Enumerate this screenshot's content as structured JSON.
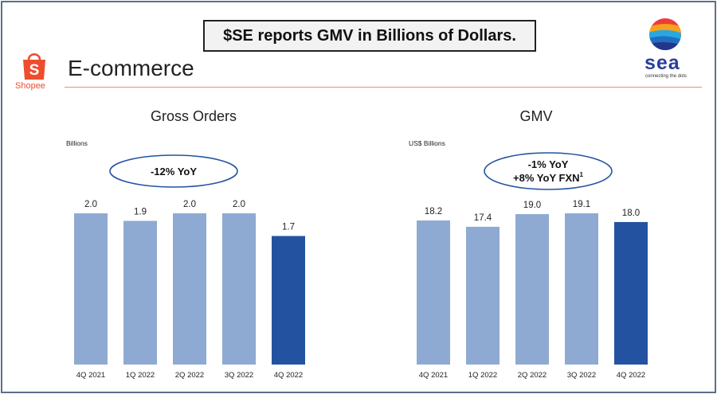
{
  "banner": {
    "text": "$SE reports GMV in Billions of Dollars."
  },
  "header": {
    "section_title": "E-commerce",
    "shopee_label": "Shopee",
    "sea_brand": "sea",
    "sea_tagline": "connecting the dots"
  },
  "colors": {
    "bar": "#8faad2",
    "bar_highlight": "#2353a0",
    "rule": "#f08a80",
    "shopee": "#ee4d2d",
    "sea": "#2a3f9a"
  },
  "chart_data": [
    {
      "type": "bar",
      "title": "Gross Orders",
      "unit_label": "Billions",
      "callout": [
        "-12% YoY"
      ],
      "categories": [
        "4Q 2021",
        "1Q 2022",
        "2Q 2022",
        "3Q 2022",
        "4Q 2022"
      ],
      "values": [
        2.0,
        1.9,
        2.0,
        2.0,
        1.7
      ],
      "value_labels": [
        "2.0",
        "1.9",
        "2.0",
        "2.0",
        "1.7"
      ],
      "highlight_index": 4,
      "ylim": [
        0,
        2.0
      ]
    },
    {
      "type": "bar",
      "title": "GMV",
      "unit_label": "US$ Billions",
      "callout": [
        "-1% YoY",
        "+8% YoY FXN",
        "1"
      ],
      "categories": [
        "4Q 2021",
        "1Q 2022",
        "2Q 2022",
        "3Q 2022",
        "4Q 2022"
      ],
      "values": [
        18.2,
        17.4,
        19.0,
        19.1,
        18.0
      ],
      "value_labels": [
        "18.2",
        "17.4",
        "19.0",
        "19.1",
        "18.0"
      ],
      "highlight_index": 4,
      "ylim": [
        0,
        19.1
      ]
    }
  ]
}
